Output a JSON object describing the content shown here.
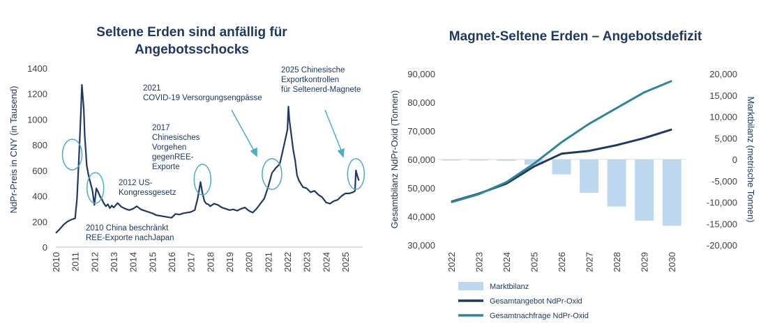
{
  "chart_data": [
    {
      "type": "line",
      "title": "Seltene Erden sind anfällig für\nAngebotsschocks",
      "xlabel": "",
      "ylabel": "NdPr-Preis in CNY (in Tausend)",
      "ylim": [
        0,
        1400
      ],
      "yticks": [
        0,
        200,
        400,
        600,
        800,
        1000,
        1200,
        1400
      ],
      "xlim": [
        2010,
        2025.9
      ],
      "xticks": [
        "2010",
        "2011",
        "2012",
        "2013",
        "2014",
        "2015",
        "2016",
        "2017",
        "2018",
        "2019",
        "2020",
        "2021",
        "2022",
        "2023",
        "2024",
        "2025"
      ],
      "series": [
        {
          "name": "NdPr-Preis",
          "color": "#1f3864",
          "x": [
            2010.0,
            2010.2,
            2010.4,
            2010.6,
            2010.8,
            2011.0,
            2011.1,
            2011.2,
            2011.3,
            2011.35,
            2011.4,
            2011.45,
            2011.5,
            2011.55,
            2011.6,
            2011.7,
            2011.8,
            2011.9,
            2012.0,
            2012.1,
            2012.2,
            2012.3,
            2012.4,
            2012.5,
            2012.6,
            2012.7,
            2012.8,
            2012.9,
            2013.0,
            2013.2,
            2013.4,
            2013.6,
            2013.8,
            2014.0,
            2014.2,
            2014.4,
            2014.6,
            2014.8,
            2015.0,
            2015.2,
            2015.4,
            2015.6,
            2015.8,
            2016.0,
            2016.2,
            2016.4,
            2016.6,
            2016.8,
            2017.0,
            2017.2,
            2017.35,
            2017.5,
            2017.6,
            2017.7,
            2017.8,
            2017.9,
            2018.0,
            2018.2,
            2018.4,
            2018.6,
            2018.8,
            2019.0,
            2019.2,
            2019.4,
            2019.6,
            2019.8,
            2020.0,
            2020.2,
            2020.4,
            2020.6,
            2020.8,
            2021.0,
            2021.2,
            2021.4,
            2021.6,
            2021.8,
            2021.9,
            2022.0,
            2022.05,
            2022.1,
            2022.2,
            2022.3,
            2022.4,
            2022.5,
            2022.6,
            2022.8,
            2023.0,
            2023.2,
            2023.4,
            2023.6,
            2023.8,
            2024.0,
            2024.2,
            2024.4,
            2024.6,
            2024.8,
            2025.0,
            2025.2,
            2025.4,
            2025.5,
            2025.55,
            2025.6,
            2025.7
          ],
          "values": [
            110,
            140,
            175,
            200,
            215,
            225,
            380,
            700,
            1060,
            1270,
            1180,
            1080,
            870,
            760,
            640,
            560,
            500,
            440,
            330,
            460,
            430,
            395,
            370,
            340,
            320,
            335,
            305,
            325,
            310,
            345,
            315,
            300,
            290,
            300,
            320,
            295,
            285,
            275,
            265,
            250,
            245,
            240,
            235,
            230,
            260,
            255,
            265,
            270,
            275,
            290,
            380,
            510,
            420,
            360,
            340,
            335,
            320,
            340,
            330,
            310,
            300,
            290,
            295,
            285,
            300,
            310,
            285,
            270,
            300,
            340,
            380,
            470,
            580,
            620,
            650,
            780,
            850,
            920,
            1100,
            1000,
            880,
            760,
            680,
            560,
            520,
            470,
            460,
            430,
            440,
            410,
            390,
            350,
            340,
            360,
            370,
            400,
            420,
            420,
            430,
            440,
            600,
            570,
            520
          ]
        }
      ],
      "annotations": [
        {
          "id": "china2010",
          "text": "2010 China beschränkt\nREE-Exporte nachJapan"
        },
        {
          "id": "us2012",
          "text": "2012 US-\nKongressgesetz"
        },
        {
          "id": "china2017",
          "text": "2017\nChinesisches\nVorgehen\ngegenREE-\nExporte"
        },
        {
          "id": "covid2021",
          "text": "2021\nCOVID-19 Versorgungsengpässe"
        },
        {
          "id": "export2025",
          "text": "2025 Chinesische\nExportkontrollen\nfür Seltenerd-Magnete"
        }
      ]
    },
    {
      "type": "bar+line",
      "title": "Magnet-Seltene Erden – Angebotsdefizit",
      "xlabel": "",
      "ylabel": "Gesamtbilanz NdPr-Oxid (Tonnen)",
      "ylabel_right": "Marktbilanz (metrische Tonnen)",
      "ylim": [
        30000,
        90000
      ],
      "ylim_right": [
        -20000,
        20000
      ],
      "yticks": [
        "30,000",
        "40,000",
        "50,000",
        "60,000",
        "70,000",
        "80,000",
        "90,000"
      ],
      "yticks_right": [
        "-20,000",
        "-15,000",
        "-10,000",
        "-5,000",
        "0",
        "5,000",
        "10,000",
        "15,000",
        "20,000"
      ],
      "categories": [
        "2022",
        "2023",
        "2024",
        "2025",
        "2026",
        "2027",
        "2028",
        "2029",
        "2030"
      ],
      "series": [
        {
          "name": "Marktbilanz",
          "type": "bar",
          "axis": "right",
          "color": "#bdd7ee",
          "values": [
            -100,
            -100,
            -300,
            -1200,
            -3500,
            -7800,
            -11000,
            -14300,
            -15500
          ]
        },
        {
          "name": "Gesamtangebot NdPr-Oxid",
          "type": "line",
          "axis": "left",
          "color": "#1f3864",
          "values": [
            45200,
            48000,
            51500,
            57500,
            62000,
            63000,
            65000,
            67500,
            70500
          ]
        },
        {
          "name": "Gesamtnachfrage NdPr-Oxid",
          "type": "line",
          "axis": "left",
          "color": "#31849b",
          "values": [
            45000,
            47800,
            52000,
            58500,
            66000,
            72500,
            78000,
            83500,
            87500
          ]
        }
      ],
      "legend": [
        "Marktbilanz",
        "Gesamtangebot NdPr-Oxid",
        "Gesamtnachfrage NdPr-Oxid"
      ]
    }
  ]
}
